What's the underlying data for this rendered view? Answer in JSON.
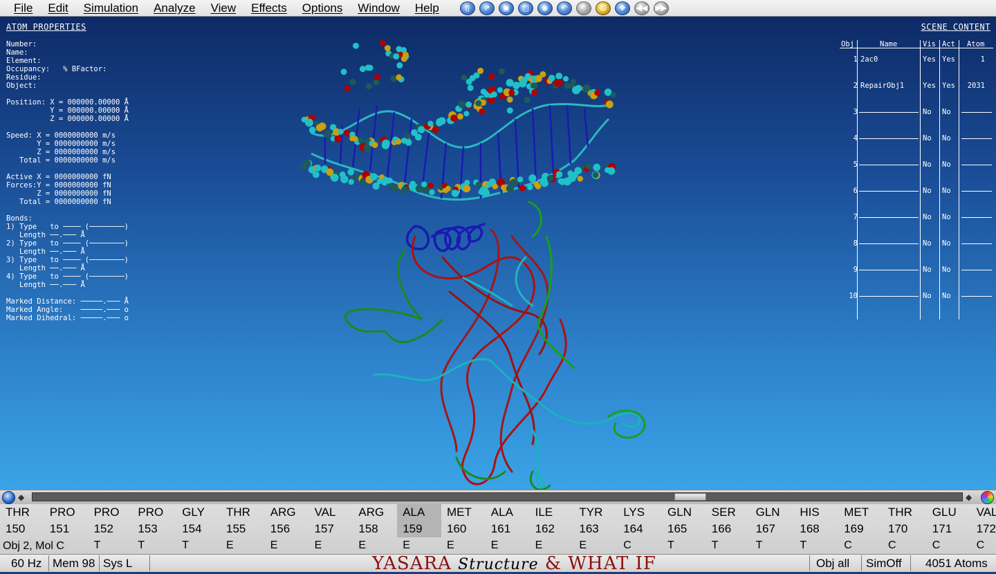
{
  "menu": [
    "File",
    "Edit",
    "Simulation",
    "Analyze",
    "View",
    "Effects",
    "Options",
    "Window",
    "Help"
  ],
  "toolbar": [
    {
      "icon": "new-document-icon",
      "glyph": "▯",
      "style": ""
    },
    {
      "icon": "open-icon",
      "glyph": "↗",
      "style": ""
    },
    {
      "icon": "save-icon",
      "glyph": "▣",
      "style": ""
    },
    {
      "icon": "screenshot-icon",
      "glyph": "▢",
      "style": ""
    },
    {
      "icon": "sphere-icon",
      "glyph": "◉",
      "style": ""
    },
    {
      "icon": "undo-icon",
      "glyph": "↶",
      "style": ""
    },
    {
      "icon": "redo-icon",
      "glyph": "⌃",
      "style": "grey"
    },
    {
      "icon": "face-icon",
      "glyph": "☺",
      "style": "gold"
    },
    {
      "icon": "move-icon",
      "glyph": "✥",
      "style": ""
    },
    {
      "icon": "rewind-icon",
      "glyph": "◀◀",
      "style": "grey"
    },
    {
      "icon": "fast-forward-icon",
      "glyph": "▶▶",
      "style": "grey"
    }
  ],
  "atom_panel": {
    "title": "ATOM PROPERTIES",
    "body": "Number:\nName:\nElement:\nOccupancy:   % BFactor:\nResidue:\nObject:\n\nPosition: X = 000000.00000 Å\n          Y = 000000.00000 Å\n          Z = 000000.00000 Å\n\nSpeed: X = 0000000000 m/s\n       Y = 0000000000 m/s\n       Z = 0000000000 m/s\n   Total = 0000000000 m/s\n\nActive X = 0000000000 fN\nForces:Y = 0000000000 fN\n       Z = 0000000000 fN\n   Total = 0000000000 fN\n\nBonds:\n1) Type   to ──── (────────)\n   Length ──.─── Å\n2) Type   to ──── (────────)\n   Length ──.─── Å\n3) Type   to ──── (────────)\n   Length ──.─── Å\n4) Type   to ──── (────────)\n   Length ──.─── Å\n\nMarked Distance: ─────.─── Å\nMarked Angle:    ─────.─── o\nMarked Dihedral: ─────.─── o"
  },
  "scene": {
    "title": "SCENE CONTENT",
    "headers": {
      "obj": "Obj",
      "name": "Name",
      "vis": "Vis",
      "act": "Act",
      "atom": "Atom"
    },
    "rows": [
      {
        "obj": "1",
        "name": "2ac0",
        "vis": "Yes",
        "act": "Yes",
        "atom": "1"
      },
      {
        "obj": "2",
        "name": "RepairObj1",
        "vis": "Yes",
        "act": "Yes",
        "atom": "2031"
      },
      {
        "obj": "3",
        "name": "",
        "vis": "No",
        "act": "No",
        "atom": ""
      },
      {
        "obj": "4",
        "name": "",
        "vis": "No",
        "act": "No",
        "atom": ""
      },
      {
        "obj": "5",
        "name": "",
        "vis": "No",
        "act": "No",
        "atom": ""
      },
      {
        "obj": "6",
        "name": "",
        "vis": "No",
        "act": "No",
        "atom": ""
      },
      {
        "obj": "7",
        "name": "",
        "vis": "No",
        "act": "No",
        "atom": ""
      },
      {
        "obj": "8",
        "name": "",
        "vis": "No",
        "act": "No",
        "atom": ""
      },
      {
        "obj": "9",
        "name": "",
        "vis": "No",
        "act": "No",
        "atom": ""
      },
      {
        "obj": "10",
        "name": "",
        "vis": "No",
        "act": "No",
        "atom": ""
      }
    ]
  },
  "sequence": {
    "label": "Obj 2, Mol C",
    "selected_index": 9,
    "residues": [
      {
        "res": "THR",
        "num": "150",
        "ss": ""
      },
      {
        "res": "PRO",
        "num": "151",
        "ss": "T"
      },
      {
        "res": "PRO",
        "num": "152",
        "ss": "T"
      },
      {
        "res": "PRO",
        "num": "153",
        "ss": "T"
      },
      {
        "res": "GLY",
        "num": "154",
        "ss": "T"
      },
      {
        "res": "THR",
        "num": "155",
        "ss": "E"
      },
      {
        "res": "ARG",
        "num": "156",
        "ss": "E"
      },
      {
        "res": "VAL",
        "num": "157",
        "ss": "E"
      },
      {
        "res": "ARG",
        "num": "158",
        "ss": "E"
      },
      {
        "res": "ALA",
        "num": "159",
        "ss": "E"
      },
      {
        "res": "MET",
        "num": "160",
        "ss": "E"
      },
      {
        "res": "ALA",
        "num": "161",
        "ss": "E"
      },
      {
        "res": "ILE",
        "num": "162",
        "ss": "E"
      },
      {
        "res": "TYR",
        "num": "163",
        "ss": "E"
      },
      {
        "res": "LYS",
        "num": "164",
        "ss": "C"
      },
      {
        "res": "GLN",
        "num": "165",
        "ss": "T"
      },
      {
        "res": "SER",
        "num": "166",
        "ss": "T"
      },
      {
        "res": "GLN",
        "num": "167",
        "ss": "T"
      },
      {
        "res": "HIS",
        "num": "168",
        "ss": "T"
      },
      {
        "res": "MET",
        "num": "169",
        "ss": "C"
      },
      {
        "res": "THR",
        "num": "170",
        "ss": "C"
      },
      {
        "res": "GLU",
        "num": "171",
        "ss": "C"
      },
      {
        "res": "VAL",
        "num": "172",
        "ss": "C"
      }
    ]
  },
  "status": {
    "hz": "60  Hz",
    "mem": "Mem 98",
    "sys": "Sys L",
    "brand_a": "YASARA",
    "brand_b": "Structure",
    "brand_c": "& WHAT IF",
    "obj": "Obj  all",
    "sim": "SimOff",
    "atoms": "4051 Atoms"
  }
}
